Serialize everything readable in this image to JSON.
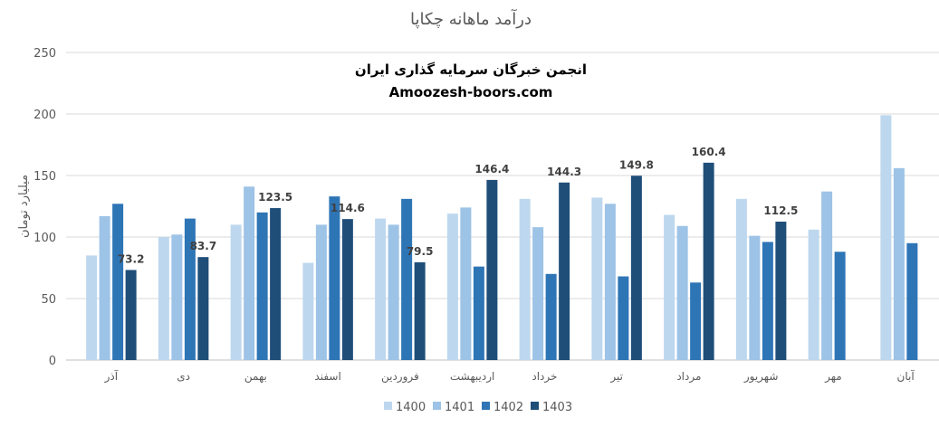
{
  "chart_data": {
    "type": "bar",
    "title": "درآمد ماهانه چکاپا",
    "ylabel": "میلیارد تومان",
    "xlabel": "",
    "ylim": [
      0,
      250
    ],
    "yticks": [
      0,
      50,
      100,
      150,
      200,
      250
    ],
    "grid": true,
    "legend_placement": "bottom",
    "watermark": [
      "انجمن خبرگان سرمایه گذاری ایران",
      "Amoozesh-boors.com"
    ],
    "categories": [
      "آذر",
      "دی",
      "بهمن",
      "اسفند",
      "فروردین",
      "اردیبهشت",
      "خرداد",
      "تیر",
      "مرداد",
      "شهریور",
      "مهر",
      "آبان"
    ],
    "series": [
      {
        "name": "1400",
        "color": "#BDD7EE",
        "values": [
          85,
          100,
          110,
          79,
          115,
          119,
          131,
          132,
          118,
          131,
          106,
          199
        ]
      },
      {
        "name": "1401",
        "color": "#9DC3E6",
        "values": [
          117,
          102,
          141,
          110,
          110,
          124,
          108,
          127,
          109,
          101,
          137,
          156
        ]
      },
      {
        "name": "1402",
        "color": "#2E75B6",
        "values": [
          127,
          115,
          120,
          133,
          131,
          76,
          70,
          68,
          63,
          96,
          88,
          95
        ]
      },
      {
        "name": "1403",
        "color": "#1F4E79",
        "values": [
          73.2,
          83.7,
          123.5,
          114.6,
          79.5,
          146.4,
          144.3,
          149.8,
          160.4,
          112.5,
          null,
          null
        ],
        "data_labels": true
      }
    ]
  }
}
